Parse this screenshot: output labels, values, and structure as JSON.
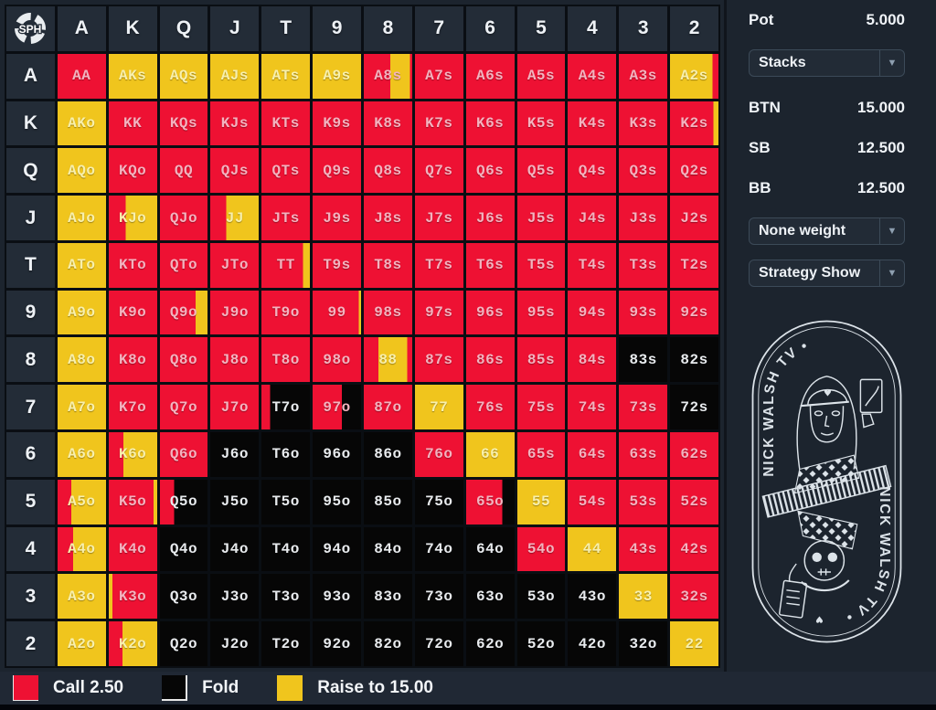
{
  "header": {
    "corner_logo": "SPH"
  },
  "columns": [
    "A",
    "K",
    "Q",
    "J",
    "T",
    "9",
    "8",
    "7",
    "6",
    "5",
    "4",
    "3",
    "2"
  ],
  "rows": [
    "A",
    "K",
    "Q",
    "J",
    "T",
    "9",
    "8",
    "7",
    "6",
    "5",
    "4",
    "3",
    "2"
  ],
  "colors": {
    "r": "#ee1133",
    "y": "#f0c51d",
    "b": "#060606"
  },
  "text_colors": {
    "r": "#f3b3bf",
    "y": "#f8f0ad",
    "b": "#e8ebee"
  },
  "chart_data": {
    "type": "heatmap",
    "title": "Preflop strategy matrix 13x13",
    "legend_position": "bottom",
    "actions": {
      "r": "Call 2.50",
      "b": "Fold",
      "y": "Raise to 15.00"
    },
    "grid": [
      [
        [
          "AA",
          "r"
        ],
        [
          "AKs",
          "y"
        ],
        [
          "AQs",
          "y"
        ],
        [
          "AJs",
          "y"
        ],
        [
          "ATs",
          "y"
        ],
        [
          "A9s",
          "y"
        ],
        [
          "A8s",
          [
            [
              "r",
              55
            ],
            [
              "y",
              40
            ],
            [
              "r",
              5
            ]
          ]
        ],
        [
          "A7s",
          "r"
        ],
        [
          "A6s",
          "r"
        ],
        [
          "A5s",
          "r"
        ],
        [
          "A4s",
          "r"
        ],
        [
          "A3s",
          "r"
        ],
        [
          "A2s",
          [
            [
              "y",
              88
            ],
            [
              "r",
              12
            ]
          ]
        ]
      ],
      [
        [
          "AKo",
          "y"
        ],
        [
          "KK",
          "r"
        ],
        [
          "KQs",
          "r"
        ],
        [
          "KJs",
          "r"
        ],
        [
          "KTs",
          "r"
        ],
        [
          "K9s",
          "r"
        ],
        [
          "K8s",
          "r"
        ],
        [
          "K7s",
          "r"
        ],
        [
          "K6s",
          "r"
        ],
        [
          "K5s",
          "r"
        ],
        [
          "K4s",
          "r"
        ],
        [
          "K3s",
          "r"
        ],
        [
          "K2s",
          [
            [
              "r",
              90
            ],
            [
              "y",
              10
            ]
          ]
        ]
      ],
      [
        [
          "AQo",
          "y"
        ],
        [
          "KQo",
          "r"
        ],
        [
          "QQ",
          "r"
        ],
        [
          "QJs",
          "r"
        ],
        [
          "QTs",
          "r"
        ],
        [
          "Q9s",
          "r"
        ],
        [
          "Q8s",
          "r"
        ],
        [
          "Q7s",
          "r"
        ],
        [
          "Q6s",
          "r"
        ],
        [
          "Q5s",
          "r"
        ],
        [
          "Q4s",
          "r"
        ],
        [
          "Q3s",
          "r"
        ],
        [
          "Q2s",
          "r"
        ]
      ],
      [
        [
          "AJo",
          "y"
        ],
        [
          "KJo",
          [
            [
              "r",
              35
            ],
            [
              "y",
              65
            ]
          ]
        ],
        [
          "QJo",
          "r"
        ],
        [
          "JJ",
          [
            [
              "r",
              33
            ],
            [
              "y",
              67
            ]
          ]
        ],
        [
          "JTs",
          "r"
        ],
        [
          "J9s",
          "r"
        ],
        [
          "J8s",
          "r"
        ],
        [
          "J7s",
          "r"
        ],
        [
          "J6s",
          "r"
        ],
        [
          "J5s",
          "r"
        ],
        [
          "J4s",
          "r"
        ],
        [
          "J3s",
          "r"
        ],
        [
          "J2s",
          "r"
        ]
      ],
      [
        [
          "ATo",
          "y"
        ],
        [
          "KTo",
          "r"
        ],
        [
          "QTo",
          "r"
        ],
        [
          "JTo",
          "r"
        ],
        [
          "TT",
          [
            [
              "r",
              86
            ],
            [
              "y",
              14
            ]
          ]
        ],
        [
          "T9s",
          "r"
        ],
        [
          "T8s",
          "r"
        ],
        [
          "T7s",
          "r"
        ],
        [
          "T6s",
          "r"
        ],
        [
          "T5s",
          "r"
        ],
        [
          "T4s",
          "r"
        ],
        [
          "T3s",
          "r"
        ],
        [
          "T2s",
          "r"
        ]
      ],
      [
        [
          "A9o",
          "y"
        ],
        [
          "K9o",
          "r"
        ],
        [
          "Q9o",
          [
            [
              "r",
              75
            ],
            [
              "y",
              25
            ]
          ]
        ],
        [
          "J9o",
          "r"
        ],
        [
          "T9o",
          "r"
        ],
        [
          "99",
          [
            [
              "r",
              95
            ],
            [
              "y",
              5
            ]
          ]
        ],
        [
          "98s",
          "r"
        ],
        [
          "97s",
          "r"
        ],
        [
          "96s",
          "r"
        ],
        [
          "95s",
          "r"
        ],
        [
          "94s",
          "r"
        ],
        [
          "93s",
          "r"
        ],
        [
          "92s",
          "r"
        ]
      ],
      [
        [
          "A8o",
          "y"
        ],
        [
          "K8o",
          "r"
        ],
        [
          "Q8o",
          "r"
        ],
        [
          "J8o",
          "r"
        ],
        [
          "T8o",
          "r"
        ],
        [
          "98o",
          "r"
        ],
        [
          "88",
          [
            [
              "r",
              30
            ],
            [
              "y",
              60
            ],
            [
              "r",
              10
            ]
          ]
        ],
        [
          "87s",
          "r"
        ],
        [
          "86s",
          "r"
        ],
        [
          "85s",
          "r"
        ],
        [
          "84s",
          "r"
        ],
        [
          "83s",
          "b"
        ],
        [
          "82s",
          "b"
        ]
      ],
      [
        [
          "A7o",
          "y"
        ],
        [
          "K7o",
          "r"
        ],
        [
          "Q7o",
          "r"
        ],
        [
          "J7o",
          "r"
        ],
        [
          "T7o",
          [
            [
              "r",
              18
            ],
            [
              "b",
              82
            ]
          ]
        ],
        [
          "97o",
          [
            [
              "r",
              60
            ],
            [
              "b",
              40
            ]
          ]
        ],
        [
          "87o",
          "r"
        ],
        [
          "77",
          "y"
        ],
        [
          "76s",
          "r"
        ],
        [
          "75s",
          "r"
        ],
        [
          "74s",
          "r"
        ],
        [
          "73s",
          "r"
        ],
        [
          "72s",
          "b"
        ]
      ],
      [
        [
          "A6o",
          "y"
        ],
        [
          "K6o",
          [
            [
              "r",
              30
            ],
            [
              "y",
              70
            ]
          ]
        ],
        [
          "Q6o",
          "r"
        ],
        [
          "J6o",
          "b"
        ],
        [
          "T6o",
          "b"
        ],
        [
          "96o",
          "b"
        ],
        [
          "86o",
          "b"
        ],
        [
          "76o",
          "r"
        ],
        [
          "66",
          "y"
        ],
        [
          "65s",
          "r"
        ],
        [
          "64s",
          "r"
        ],
        [
          "63s",
          "r"
        ],
        [
          "62s",
          "r"
        ]
      ],
      [
        [
          "A5o",
          [
            [
              "r",
              28
            ],
            [
              "y",
              72
            ]
          ]
        ],
        [
          "K5o",
          [
            [
              "r",
              92
            ],
            [
              "y",
              8
            ]
          ]
        ],
        [
          "Q5o",
          [
            [
              "r",
              30
            ],
            [
              "b",
              70
            ]
          ]
        ],
        [
          "J5o",
          "b"
        ],
        [
          "T5o",
          "b"
        ],
        [
          "95o",
          "b"
        ],
        [
          "85o",
          "b"
        ],
        [
          "75o",
          "b"
        ],
        [
          "65o",
          [
            [
              "r",
              75
            ],
            [
              "b",
              25
            ]
          ]
        ],
        [
          "55",
          "y"
        ],
        [
          "54s",
          "r"
        ],
        [
          "53s",
          "r"
        ],
        [
          "52s",
          "r"
        ]
      ],
      [
        [
          "A4o",
          [
            [
              "r",
              32
            ],
            [
              "y",
              68
            ]
          ]
        ],
        [
          "K4o",
          "r"
        ],
        [
          "Q4o",
          "b"
        ],
        [
          "J4o",
          "b"
        ],
        [
          "T4o",
          "b"
        ],
        [
          "94o",
          "b"
        ],
        [
          "84o",
          "b"
        ],
        [
          "74o",
          "b"
        ],
        [
          "64o",
          "b"
        ],
        [
          "54o",
          "r"
        ],
        [
          "44",
          "y"
        ],
        [
          "43s",
          "r"
        ],
        [
          "42s",
          "r"
        ]
      ],
      [
        [
          "A3o",
          "y"
        ],
        [
          "K3o",
          [
            [
              "y",
              8
            ],
            [
              "r",
              92
            ]
          ]
        ],
        [
          "Q3o",
          "b"
        ],
        [
          "J3o",
          "b"
        ],
        [
          "T3o",
          "b"
        ],
        [
          "93o",
          "b"
        ],
        [
          "83o",
          "b"
        ],
        [
          "73o",
          "b"
        ],
        [
          "63o",
          "b"
        ],
        [
          "53o",
          "b"
        ],
        [
          "43o",
          "b"
        ],
        [
          "33",
          "y"
        ],
        [
          "32s",
          "r"
        ]
      ],
      [
        [
          "A2o",
          "y"
        ],
        [
          "K2o",
          [
            [
              "r",
              28
            ],
            [
              "y",
              72
            ]
          ]
        ],
        [
          "Q2o",
          "b"
        ],
        [
          "J2o",
          "b"
        ],
        [
          "T2o",
          "b"
        ],
        [
          "92o",
          "b"
        ],
        [
          "82o",
          "b"
        ],
        [
          "72o",
          "b"
        ],
        [
          "62o",
          "b"
        ],
        [
          "52o",
          "b"
        ],
        [
          "42o",
          "b"
        ],
        [
          "32o",
          "b"
        ],
        [
          "22",
          "y"
        ]
      ]
    ]
  },
  "sidebar": {
    "pot": {
      "label": "Pot",
      "value": "5.000"
    },
    "stacks_dropdown": {
      "value": "Stacks"
    },
    "stacks": [
      {
        "label": "BTN",
        "value": "15.000"
      },
      {
        "label": "SB",
        "value": "12.500"
      },
      {
        "label": "BB",
        "value": "12.500"
      }
    ],
    "weight_dropdown": {
      "value": "None weight"
    },
    "strategy_dropdown": {
      "value": "Strategy Show"
    },
    "logo_text_top": "NICK WALSH TV •",
    "logo_text_bottom": "NICK WALSH TV •"
  },
  "legend": {
    "items": [
      {
        "label": "Call 2.50",
        "key": "r"
      },
      {
        "label": "Fold",
        "key": "b"
      },
      {
        "label": "Raise to 15.00",
        "key": "y"
      }
    ]
  }
}
